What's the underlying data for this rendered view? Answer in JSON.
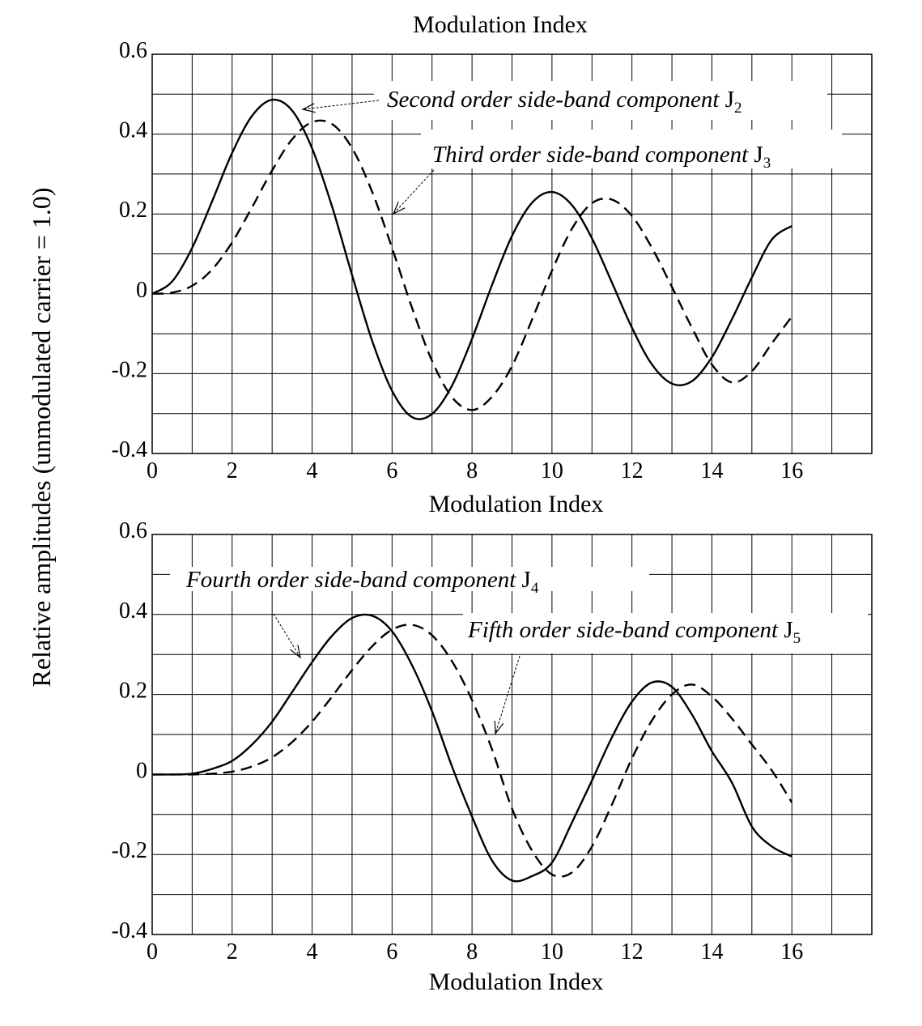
{
  "page": {
    "ylabel": "Relative amplitudes (unmodulated carrier = 1.0)",
    "top_cut_xlabel": "Modulation Index"
  },
  "chart_data": [
    {
      "type": "line",
      "xlabel": "Modulation Index",
      "ylabel": "Relative amplitudes (unmodulated carrier = 1.0)",
      "xlim": [
        0,
        18
      ],
      "ylim": [
        -0.4,
        0.6
      ],
      "x_ticks": [
        "0",
        "2",
        "4",
        "6",
        "8",
        "10",
        "12",
        "14",
        "16"
      ],
      "y_ticks": [
        "0.6",
        "0.4",
        "0.2",
        "0",
        "-0.2",
        "-0.4"
      ],
      "grid": true,
      "series": [
        {
          "name": "Second order side-band component J",
          "subscript": "2",
          "style": "solid",
          "color": "#000000",
          "x": [
            0,
            0.5,
            1,
            1.5,
            2,
            2.5,
            3,
            3.5,
            4,
            4.5,
            5,
            5.5,
            6,
            6.5,
            7,
            7.5,
            8,
            8.5,
            9,
            9.5,
            10,
            10.5,
            11,
            11.5,
            12,
            12.5,
            13,
            13.5,
            14,
            14.5,
            15,
            15.5,
            16
          ],
          "y": [
            0,
            0.031,
            0.115,
            0.232,
            0.353,
            0.446,
            0.486,
            0.459,
            0.364,
            0.218,
            0.047,
            -0.117,
            -0.243,
            -0.309,
            -0.301,
            -0.23,
            -0.113,
            0.022,
            0.145,
            0.228,
            0.255,
            0.222,
            0.139,
            0.028,
            -0.085,
            -0.177,
            -0.225,
            -0.219,
            -0.159,
            -0.064,
            0.041,
            0.136,
            0.17
          ]
        },
        {
          "name": "Third order side-band component J",
          "subscript": "3",
          "style": "dashed",
          "color": "#000000",
          "x": [
            0,
            0.5,
            1,
            1.5,
            2,
            2.5,
            3,
            3.5,
            4,
            4.5,
            5,
            5.5,
            6,
            6.5,
            7,
            7.5,
            8,
            8.5,
            9,
            9.5,
            10,
            10.5,
            11,
            11.5,
            12,
            12.5,
            13,
            13.5,
            14,
            14.5,
            15,
            15.5,
            16
          ],
          "y": [
            0,
            0.003,
            0.02,
            0.061,
            0.129,
            0.217,
            0.309,
            0.387,
            0.43,
            0.425,
            0.365,
            0.256,
            0.115,
            -0.035,
            -0.168,
            -0.259,
            -0.291,
            -0.258,
            -0.181,
            -0.065,
            0.058,
            0.163,
            0.227,
            0.236,
            0.195,
            0.115,
            0.017,
            -0.085,
            -0.177,
            -0.222,
            -0.194,
            -0.124,
            -0.057
          ]
        }
      ],
      "annotations": [
        {
          "text": "Second order side-band component J",
          "subscript": "2"
        },
        {
          "text": "Third order side-band component J",
          "subscript": "3"
        }
      ]
    },
    {
      "type": "line",
      "xlabel": "Modulation Index",
      "xlim": [
        0,
        18
      ],
      "ylim": [
        -0.4,
        0.6
      ],
      "x_ticks": [
        "0",
        "2",
        "4",
        "6",
        "8",
        "10",
        "12",
        "14",
        "16"
      ],
      "y_ticks": [
        "0.6",
        "0.4",
        "0.2",
        "0",
        "-0.2",
        "-0.4"
      ],
      "grid": true,
      "series": [
        {
          "name": "Fourth order side-band component J",
          "subscript": "4",
          "style": "solid",
          "color": "#000000",
          "x": [
            0,
            0.5,
            1,
            1.5,
            2,
            2.5,
            3,
            3.5,
            4,
            4.5,
            5,
            5.5,
            6,
            6.5,
            7,
            7.5,
            8,
            8.5,
            9,
            9.5,
            10,
            10.5,
            11,
            11.5,
            12,
            12.5,
            13,
            13.5,
            14,
            14.5,
            15,
            15.5,
            16
          ],
          "y": [
            0,
            0.0,
            0.002,
            0.014,
            0.034,
            0.075,
            0.132,
            0.206,
            0.281,
            0.347,
            0.391,
            0.397,
            0.358,
            0.273,
            0.158,
            0.02,
            -0.105,
            -0.215,
            -0.265,
            -0.254,
            -0.22,
            -0.12,
            -0.015,
            0.093,
            0.182,
            0.23,
            0.219,
            0.15,
            0.058,
            -0.02,
            -0.13,
            -0.18,
            -0.205
          ]
        },
        {
          "name": "Fifth order side-band component J",
          "subscript": "5",
          "style": "dashed",
          "color": "#000000",
          "x": [
            0,
            0.5,
            1,
            1.5,
            2,
            2.5,
            3,
            3.5,
            4,
            4.5,
            5,
            5.5,
            6,
            6.5,
            7,
            7.5,
            8,
            8.5,
            9,
            9.5,
            10,
            10.5,
            11,
            11.5,
            12,
            12.5,
            13,
            13.5,
            14,
            14.5,
            15,
            15.5,
            16
          ],
          "y": [
            0,
            0.0,
            0.0,
            0.002,
            0.007,
            0.02,
            0.043,
            0.081,
            0.132,
            0.195,
            0.261,
            0.32,
            0.362,
            0.374,
            0.348,
            0.283,
            0.186,
            0.063,
            -0.085,
            -0.19,
            -0.25,
            -0.245,
            -0.18,
            -0.075,
            0.04,
            0.135,
            0.2,
            0.225,
            0.195,
            0.14,
            0.075,
            0.01,
            -0.07
          ]
        }
      ],
      "annotations": [
        {
          "text": "Fourth order side-band component J",
          "subscript": "4"
        },
        {
          "text": "Fifth order side-band component J",
          "subscript": "5"
        }
      ]
    }
  ]
}
